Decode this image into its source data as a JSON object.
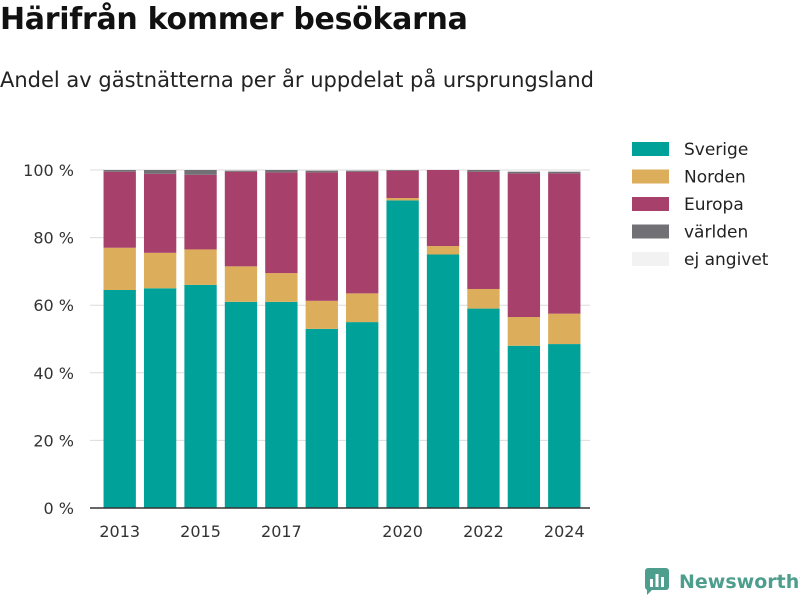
{
  "header": {
    "title": "Härifrån kommer besökarna",
    "subtitle": "Andel av gästnätterna per år uppdelat på ursprungsland"
  },
  "brand": {
    "name": "Newsworthy",
    "color": "#4e9e8e"
  },
  "chart_data": {
    "type": "bar",
    "stacked": true,
    "categories": [
      "2013",
      "2014",
      "2015",
      "2016",
      "2017",
      "2018",
      "2019",
      "2020",
      "2021",
      "2022",
      "2023",
      "2024"
    ],
    "x_tick_labels": [
      "2013",
      "",
      "2015",
      "",
      "2017",
      "",
      "",
      "2020",
      "",
      "2022",
      "",
      "2024"
    ],
    "ylim": [
      0,
      100
    ],
    "yticks": [
      0,
      20,
      40,
      60,
      80,
      100
    ],
    "ytick_labels": [
      "0 %",
      "20 %",
      "40 %",
      "60 %",
      "80 %",
      "100 %"
    ],
    "grid": true,
    "legend_position": "right",
    "series": [
      {
        "name": "Sverige",
        "color": "#00a199",
        "values": [
          64.5,
          65,
          66,
          61,
          61,
          53,
          55,
          91,
          75,
          59,
          48,
          48.5
        ]
      },
      {
        "name": "Norden",
        "color": "#dcad5a",
        "values": [
          12.5,
          10.5,
          10.5,
          10.5,
          8.5,
          8.3,
          8.5,
          0.7,
          2.5,
          5.8,
          8.5,
          9
        ]
      },
      {
        "name": "Europa",
        "color": "#a7406a",
        "values": [
          22.5,
          23.4,
          22.1,
          28,
          29.8,
          38,
          36,
          8.1,
          22.5,
          34.7,
          42.5,
          41.5
        ]
      },
      {
        "name": "världen",
        "color": "#707075",
        "values": [
          0.5,
          1.1,
          1.4,
          0.3,
          0.7,
          0.5,
          0.3,
          0.2,
          0,
          0.5,
          0.5,
          0.5
        ]
      },
      {
        "name": "ej angivet",
        "color": "#f2f2f2",
        "values": [
          0,
          0,
          0,
          0,
          0,
          0,
          0,
          0,
          0,
          0,
          0,
          0
        ]
      }
    ]
  }
}
